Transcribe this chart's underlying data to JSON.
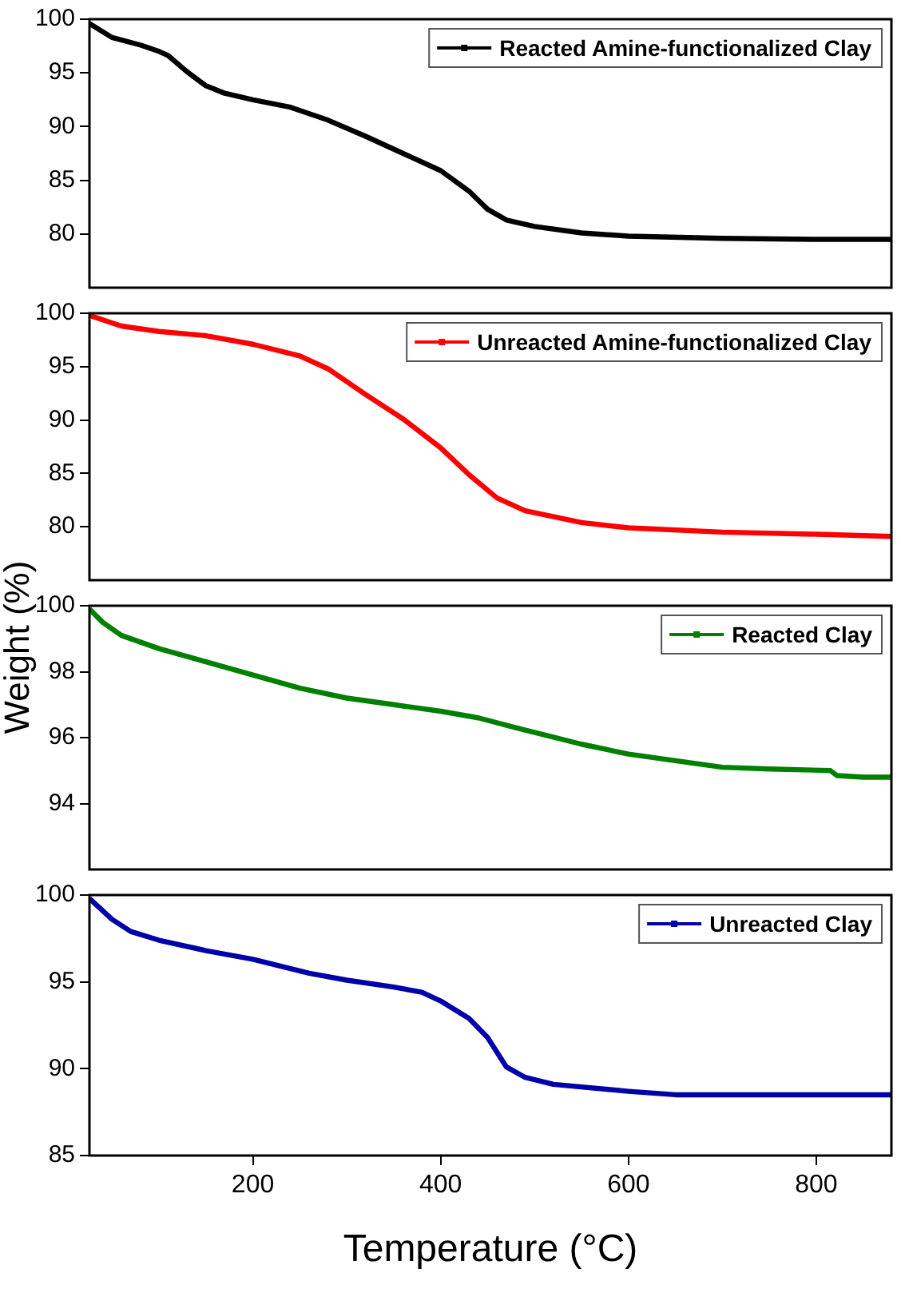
{
  "chart_data": [
    {
      "type": "line",
      "tick_labels": "y",
      "legend": "top right",
      "grid": false,
      "xlim": [
        26,
        880
      ],
      "xticks": [
        200,
        400,
        600,
        800
      ],
      "ylim": [
        75,
        100
      ],
      "yticks": [
        80,
        85,
        90,
        95,
        100
      ],
      "series": [
        {
          "name": "Reacted Amine-functionalized Clay",
          "color": "#000000",
          "x": [
            26,
            50,
            80,
            100,
            110,
            130,
            150,
            170,
            200,
            240,
            280,
            320,
            360,
            400,
            430,
            450,
            470,
            500,
            550,
            600,
            700,
            800,
            880
          ],
          "values": [
            99.6,
            98.3,
            97.6,
            97.0,
            96.6,
            95.1,
            93.8,
            93.1,
            92.5,
            91.8,
            90.6,
            89.1,
            87.5,
            85.9,
            84.0,
            82.3,
            81.3,
            80.7,
            80.1,
            79.8,
            79.6,
            79.5,
            79.5
          ]
        }
      ]
    },
    {
      "type": "line",
      "tick_labels": "y",
      "legend": "top right",
      "grid": false,
      "ylabel": "Weight (%)",
      "xlim": [
        26,
        880
      ],
      "xticks": [
        200,
        400,
        600,
        800
      ],
      "ylim": [
        75,
        100
      ],
      "yticks": [
        80,
        85,
        90,
        95,
        100
      ],
      "series": [
        {
          "name": "Unreacted Amine-functionalized Clay",
          "color": "#ff0000",
          "x": [
            26,
            60,
            100,
            150,
            200,
            250,
            280,
            320,
            360,
            400,
            430,
            460,
            490,
            550,
            600,
            700,
            800,
            880
          ],
          "values": [
            99.8,
            98.8,
            98.3,
            97.9,
            97.1,
            96.0,
            94.8,
            92.4,
            90.1,
            87.4,
            84.9,
            82.7,
            81.5,
            80.4,
            79.9,
            79.5,
            79.3,
            79.1
          ]
        }
      ]
    },
    {
      "type": "line",
      "tick_labels": "y",
      "legend": "top right",
      "grid": false,
      "xlim": [
        26,
        880
      ],
      "xticks": [
        200,
        400,
        600,
        800
      ],
      "ylim": [
        92,
        100
      ],
      "yticks": [
        94,
        96,
        98,
        100
      ],
      "series": [
        {
          "name": "Reacted Clay",
          "color": "#008000",
          "x": [
            26,
            40,
            60,
            100,
            150,
            200,
            250,
            300,
            350,
            400,
            440,
            480,
            550,
            600,
            650,
            700,
            750,
            815,
            822,
            850,
            880
          ],
          "values": [
            99.9,
            99.5,
            99.1,
            98.7,
            98.3,
            97.9,
            97.5,
            97.2,
            97.0,
            96.8,
            96.6,
            96.3,
            95.8,
            95.5,
            95.3,
            95.1,
            95.05,
            95.0,
            94.85,
            94.8,
            94.8
          ]
        }
      ]
    },
    {
      "type": "line",
      "legend": "top right",
      "grid": false,
      "xlabel": "Temperature (°C)",
      "xlim": [
        26,
        880
      ],
      "xticks": [
        200,
        400,
        600,
        800
      ],
      "ylim": [
        85,
        100
      ],
      "yticks": [
        85,
        90,
        95,
        100
      ],
      "series": [
        {
          "name": "Unreacted Clay",
          "color": "#0000aa",
          "x": [
            26,
            50,
            70,
            100,
            150,
            200,
            230,
            260,
            300,
            350,
            380,
            400,
            430,
            450,
            470,
            490,
            520,
            600,
            650,
            880
          ],
          "values": [
            99.8,
            98.6,
            97.9,
            97.4,
            96.8,
            96.3,
            95.9,
            95.5,
            95.1,
            94.7,
            94.4,
            93.9,
            92.9,
            91.8,
            90.1,
            89.5,
            89.1,
            88.7,
            88.5,
            88.5
          ]
        }
      ]
    }
  ]
}
